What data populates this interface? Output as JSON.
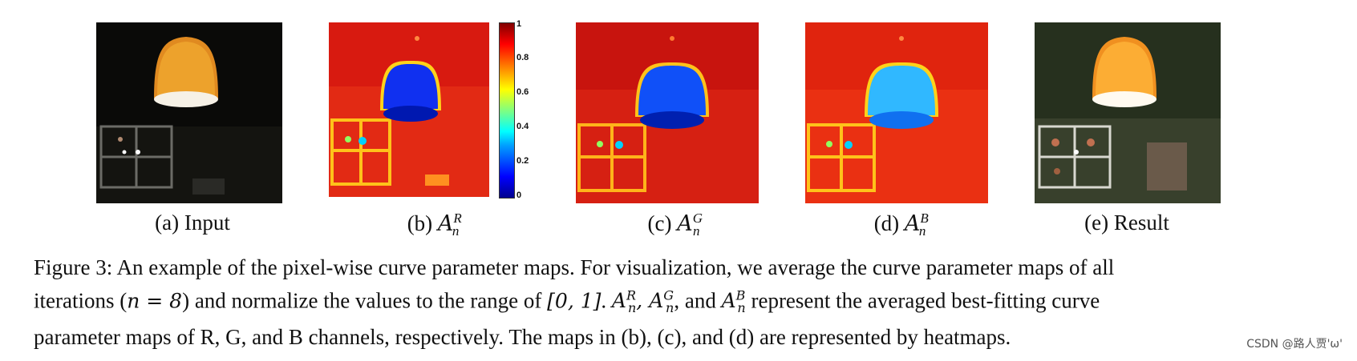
{
  "panels": [
    {
      "id": "a",
      "caption_prefix": "(a)",
      "caption_text": "Input"
    },
    {
      "id": "b",
      "caption_prefix": "(b)",
      "caption_symbol": "A",
      "caption_sup": "R",
      "caption_sub": "n"
    },
    {
      "id": "c",
      "caption_prefix": "(c)",
      "caption_symbol": "A",
      "caption_sup": "G",
      "caption_sub": "n"
    },
    {
      "id": "d",
      "caption_prefix": "(d)",
      "caption_symbol": "A",
      "caption_sup": "B",
      "caption_sub": "n"
    },
    {
      "id": "e",
      "caption_prefix": "(e)",
      "caption_text": "Result"
    }
  ],
  "colorbar": {
    "ticks": [
      "1",
      "0.8",
      "0.6",
      "0.4",
      "0.2",
      "0"
    ]
  },
  "caption": {
    "line1": "Figure 3: An example of the pixel-wise curve parameter maps. For visualization, we average the curve parameter maps of all",
    "line2_a": "iterations (",
    "line2_math": "n = 8",
    "line2_b": ") and normalize the values to the range of ",
    "line2_range": "[0, 1]",
    "line2_c": ". ",
    "line2_d": ", and ",
    "line2_e": " represent the averaged best-fitting curve",
    "line3": "parameter maps of R, G, and B channels, respectively. The maps in (b), (c), and (d) are represented by heatmaps."
  },
  "watermark": "CSDN @路人贾'ω'"
}
